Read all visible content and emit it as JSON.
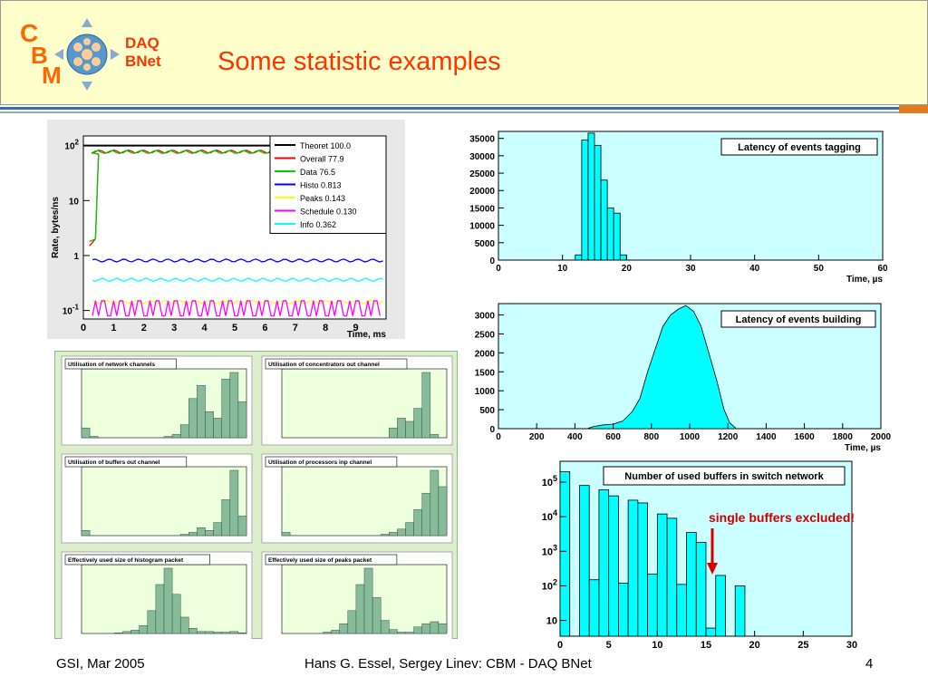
{
  "header": {
    "brand_line1": "DAQ",
    "brand_line2": "BNet",
    "title": "Some statistic examples",
    "logo_letters": [
      "C",
      "B",
      "M"
    ]
  },
  "footer": {
    "left": "GSI, Mar 2005",
    "center": "Hans G. Essel, Sergey Linev: CBM - DAQ BNet",
    "page": "4"
  },
  "note": "single buffers excluded!",
  "colors": {
    "accent": "#ff3300",
    "histogram": "#00ffff",
    "plot_bg": "#ccffff",
    "small_bg": "#eeffdd",
    "small_bar": "#88bb99"
  },
  "chart_data": [
    {
      "type": "line",
      "ylabel": "Rate, bytes/ns",
      "xlabel": "Time, ms",
      "y_scale": "log",
      "xlim": [
        0,
        10
      ],
      "legend_position": "top-right",
      "x_ticks": [
        "0",
        "1",
        "2",
        "3",
        "4",
        "5",
        "6",
        "7",
        "8",
        "9"
      ],
      "y_ticks": [
        "10^-1",
        "1",
        "10",
        "10^2"
      ],
      "series": [
        {
          "name": "Theoret 100.0",
          "color": "#000000",
          "level": 100.0
        },
        {
          "name": "Overall  77.9",
          "color": "#ff0000",
          "level": 77.9
        },
        {
          "name": "Data  76.5",
          "color": "#00cc00",
          "level": 76.5
        },
        {
          "name": "Histo 0.813",
          "color": "#0000ff",
          "level": 0.813
        },
        {
          "name": "Peaks 0.143",
          "color": "#ffff00",
          "level": 0.143
        },
        {
          "name": "Schedule 0.130",
          "color": "#ff00ff",
          "level": 0.13
        },
        {
          "name": "Info 0.362",
          "color": "#00ffff",
          "level": 0.362
        }
      ]
    },
    {
      "type": "bar",
      "title": "Latency of events tagging",
      "xlabel": "Time, µs",
      "xlim": [
        0,
        60
      ],
      "ylim": [
        0,
        37000
      ],
      "x_ticks": [
        "0",
        "10",
        "20",
        "30",
        "40",
        "50",
        "60"
      ],
      "y_ticks": [
        "0",
        "5000",
        "10000",
        "15000",
        "20000",
        "25000",
        "30000",
        "35000"
      ],
      "bins": [
        [
          12,
          13,
          1500
        ],
        [
          13,
          14,
          34500
        ],
        [
          14,
          15,
          36500
        ],
        [
          15,
          16,
          33000
        ],
        [
          16,
          17,
          23000
        ],
        [
          17,
          18,
          15000
        ],
        [
          18,
          19,
          13500
        ],
        [
          19,
          20,
          1500
        ]
      ]
    },
    {
      "type": "bar",
      "title": "Latency of events building",
      "xlabel": "Time, µs",
      "xlim": [
        0,
        2000
      ],
      "ylim": [
        0,
        3300
      ],
      "x_ticks": [
        "0",
        "200",
        "400",
        "600",
        "800",
        "1000",
        "1200",
        "1400",
        "1600",
        "1800",
        "2000"
      ],
      "y_ticks": [
        "0",
        "500",
        "1000",
        "1500",
        "2000",
        "2500",
        "3000"
      ],
      "profile": [
        [
          470,
          10
        ],
        [
          500,
          60
        ],
        [
          550,
          100
        ],
        [
          600,
          120
        ],
        [
          650,
          200
        ],
        [
          700,
          450
        ],
        [
          740,
          800
        ],
        [
          780,
          1500
        ],
        [
          820,
          2100
        ],
        [
          860,
          2700
        ],
        [
          900,
          3000
        ],
        [
          940,
          3150
        ],
        [
          980,
          3250
        ],
        [
          1020,
          3100
        ],
        [
          1060,
          2700
        ],
        [
          1100,
          2000
        ],
        [
          1140,
          1300
        ],
        [
          1180,
          500
        ],
        [
          1210,
          150
        ],
        [
          1240,
          20
        ]
      ]
    },
    {
      "type": "bar",
      "title": "Number of used buffers in switch network",
      "y_scale": "log",
      "xlim": [
        0,
        30
      ],
      "x_ticks": [
        "0",
        "5",
        "10",
        "15",
        "20",
        "25",
        "30"
      ],
      "y_ticks": [
        "10",
        "10^2",
        "10^3",
        "10^4",
        "10^5"
      ],
      "bins": [
        [
          0,
          1,
          200000
        ],
        [
          2,
          3,
          80000
        ],
        [
          3,
          4,
          150
        ],
        [
          4,
          5,
          60000
        ],
        [
          5,
          6,
          40000
        ],
        [
          6,
          7,
          120
        ],
        [
          7,
          8,
          30000
        ],
        [
          8,
          9,
          25000
        ],
        [
          9,
          10,
          220
        ],
        [
          10,
          11,
          12000
        ],
        [
          11,
          12,
          9000
        ],
        [
          12,
          13,
          110
        ],
        [
          13,
          14,
          3500
        ],
        [
          14,
          15,
          1800
        ],
        [
          15,
          16,
          6
        ],
        [
          16,
          17,
          200
        ],
        [
          18,
          19,
          100
        ],
        [
          20,
          21,
          2
        ]
      ]
    }
  ],
  "small_panels": [
    {
      "title": "Utilisation of network channels",
      "shape": [
        0.15,
        0.02,
        0.0,
        0.0,
        0.0,
        0.0,
        0.0,
        0.0,
        0.0,
        0.0,
        0.02,
        0.05,
        0.2,
        0.6,
        0.8,
        0.4,
        0.3,
        0.9,
        1.0,
        0.55
      ]
    },
    {
      "title": "Utilisation of concentrators out channel",
      "shape": [
        0.0,
        0.0,
        0.0,
        0.0,
        0.0,
        0.0,
        0.0,
        0.0,
        0.0,
        0.0,
        0.0,
        0.0,
        0.0,
        0.15,
        0.3,
        0.25,
        0.45,
        1.0,
        0.05,
        0.0
      ]
    },
    {
      "title": "Utilisation of buffers out channel",
      "shape": [
        0.08,
        0.0,
        0.0,
        0.0,
        0.0,
        0.0,
        0.0,
        0.0,
        0.0,
        0.0,
        0.0,
        0.0,
        0.02,
        0.05,
        0.12,
        0.08,
        0.2,
        0.55,
        1.0,
        0.3
      ]
    },
    {
      "title": "Utilisation of processors inp channel",
      "shape": [
        0.05,
        0.0,
        0.0,
        0.0,
        0.0,
        0.0,
        0.0,
        0.0,
        0.0,
        0.0,
        0.0,
        0.0,
        0.02,
        0.05,
        0.1,
        0.2,
        0.4,
        0.65,
        1.0,
        0.75
      ]
    },
    {
      "title": "Effectively used size of histogram packet",
      "shape": [
        0.0,
        0.0,
        0.0,
        0.0,
        0.01,
        0.03,
        0.05,
        0.12,
        0.35,
        0.75,
        1.0,
        0.6,
        0.25,
        0.08,
        0.03,
        0.03,
        0.02,
        0.02,
        0.03,
        0.01
      ]
    },
    {
      "title": "Effectively used size of peaks packet",
      "shape": [
        0.0,
        0.0,
        0.0,
        0.0,
        0.0,
        0.02,
        0.05,
        0.15,
        0.35,
        0.75,
        1.0,
        0.55,
        0.2,
        0.06,
        0.02,
        0.02,
        0.1,
        0.15,
        0.18,
        0.15
      ]
    }
  ]
}
